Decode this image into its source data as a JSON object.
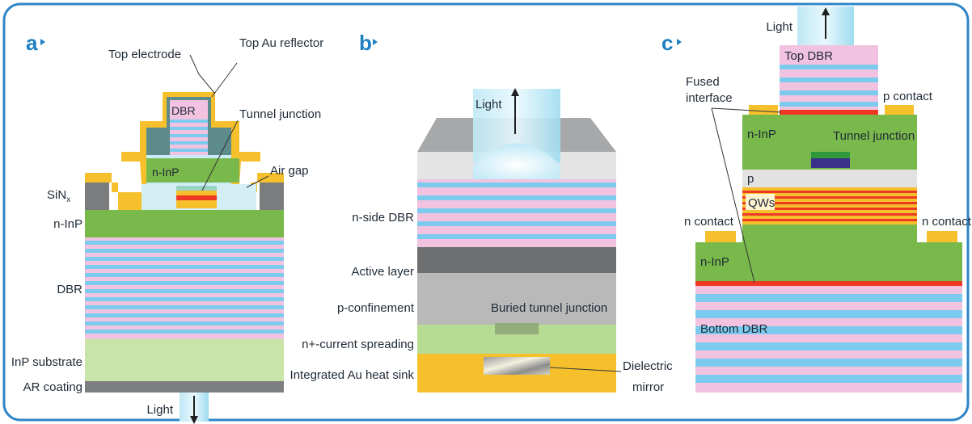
{
  "colors": {
    "frame": "#2e86c7",
    "gold": "#f6c02c",
    "green": "#79b84a",
    "pink": "#f2c3e0",
    "blue": "#7ccbef",
    "red": "#ee3a24",
    "darkgray": "#6d6f71",
    "gray": "#b8b8b8",
    "lightgray": "#e2e2e2",
    "lightblue": "#cfeef8",
    "lightgreen": "#b6db92"
  },
  "panel_a": {
    "letter": "a",
    "top_electrode": "Top electrode",
    "top_au_reflector": "Top Au reflector",
    "dbr_top": "DBR",
    "tunnel_junction": "Tunnel junction",
    "n_inp_mesa": "n-InP",
    "air_gap": "Air gap",
    "sinx_base": "SiN",
    "sinx_sub": "x",
    "n_inp": "n-InP",
    "dbr": "DBR",
    "inp_substrate": "InP substrate",
    "ar_coating": "AR coating",
    "light": "Light"
  },
  "panel_b": {
    "letter": "b",
    "light": "Light",
    "n_side_dbr": "n-side DBR",
    "active_layer": "Active layer",
    "p_confinement": "p-confinement",
    "buried_tunnel_junction": "Buried tunnel junction",
    "n_current_spreading": "n+-current spreading",
    "heat_sink": "Integrated Au heat sink",
    "dielectric": "Dielectric",
    "mirror": "mirror"
  },
  "panel_c": {
    "letter": "c",
    "light": "Light",
    "top_dbr": "Top DBR",
    "fused": "Fused",
    "interface": "interface",
    "p_contact": "p contact",
    "n_inp_top": "n-InP",
    "tunnel_junction": "Tunnel junction",
    "p": "p",
    "qws": "QWs",
    "n_contact_left": "n contact",
    "n_contact_right": "n contact",
    "n_inp": "n-InP",
    "bottom_dbr": "Bottom DBR"
  }
}
